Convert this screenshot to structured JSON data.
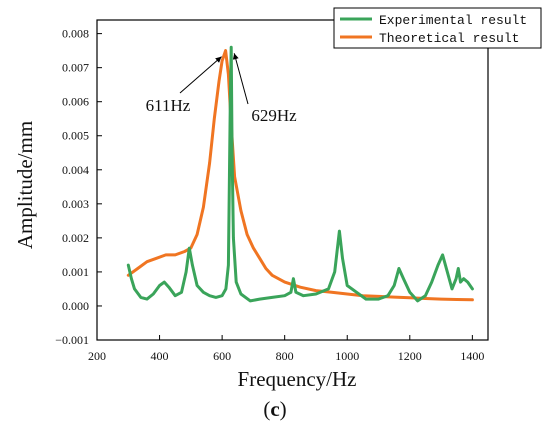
{
  "chart_data": {
    "type": "line",
    "xlabel": "Frequency/Hz",
    "ylabel": "Amplitude/mm",
    "xlim": [
      200,
      1450
    ],
    "ylim": [
      -0.001,
      0.0084
    ],
    "xticks": [
      200,
      400,
      600,
      800,
      1000,
      1200,
      1400
    ],
    "xtick_labels": [
      "200",
      "400",
      "600",
      "800",
      "1000",
      "1200",
      "1400"
    ],
    "yticks": [
      -0.001,
      0,
      0.001,
      0.002,
      0.003,
      0.004,
      0.005,
      0.006,
      0.007,
      0.008
    ],
    "ytick_labels": [
      "−0.001",
      "0.000",
      "0.001",
      "0.002",
      "0.003",
      "0.004",
      "0.005",
      "0.006",
      "0.007",
      "0.008"
    ],
    "grid": false,
    "legend_position": "top-right",
    "caption": "(c)",
    "caption_bold_letter": "c",
    "caption_open": "(",
    "caption_close": ")",
    "series": [
      {
        "name": "Experimental result",
        "color": "#3aa45a",
        "points": [
          [
            300,
            0.0012
          ],
          [
            310,
            0.0008
          ],
          [
            320,
            0.0005
          ],
          [
            340,
            0.00025
          ],
          [
            360,
            0.0002
          ],
          [
            380,
            0.00035
          ],
          [
            400,
            0.0006
          ],
          [
            415,
            0.0007
          ],
          [
            430,
            0.00055
          ],
          [
            450,
            0.0003
          ],
          [
            470,
            0.0004
          ],
          [
            485,
            0.001
          ],
          [
            495,
            0.0017
          ],
          [
            505,
            0.0012
          ],
          [
            520,
            0.0006
          ],
          [
            540,
            0.0004
          ],
          [
            560,
            0.0003
          ],
          [
            580,
            0.00025
          ],
          [
            600,
            0.0003
          ],
          [
            612,
            0.0005
          ],
          [
            620,
            0.0012
          ],
          [
            626,
            0.006
          ],
          [
            629,
            0.0076
          ],
          [
            632,
            0.0045
          ],
          [
            636,
            0.002
          ],
          [
            645,
            0.0007
          ],
          [
            660,
            0.00035
          ],
          [
            690,
            0.00015
          ],
          [
            720,
            0.0002
          ],
          [
            760,
            0.00025
          ],
          [
            800,
            0.0003
          ],
          [
            820,
            0.0004
          ],
          [
            828,
            0.0008
          ],
          [
            836,
            0.0004
          ],
          [
            860,
            0.0003
          ],
          [
            900,
            0.00035
          ],
          [
            940,
            0.0005
          ],
          [
            960,
            0.001
          ],
          [
            975,
            0.0022
          ],
          [
            985,
            0.0014
          ],
          [
            1000,
            0.0006
          ],
          [
            1030,
            0.0004
          ],
          [
            1060,
            0.0002
          ],
          [
            1100,
            0.0002
          ],
          [
            1130,
            0.0003
          ],
          [
            1150,
            0.0006
          ],
          [
            1165,
            0.0011
          ],
          [
            1180,
            0.0008
          ],
          [
            1200,
            0.0004
          ],
          [
            1225,
            0.00015
          ],
          [
            1250,
            0.0003
          ],
          [
            1270,
            0.0007
          ],
          [
            1290,
            0.0012
          ],
          [
            1305,
            0.0015
          ],
          [
            1320,
            0.001
          ],
          [
            1335,
            0.0005
          ],
          [
            1348,
            0.0008
          ],
          [
            1355,
            0.0011
          ],
          [
            1362,
            0.0007
          ],
          [
            1372,
            0.0008
          ],
          [
            1385,
            0.0007
          ],
          [
            1400,
            0.0005
          ]
        ]
      },
      {
        "name": "Theoretical result",
        "color": "#f07522",
        "points": [
          [
            300,
            0.0009
          ],
          [
            330,
            0.0011
          ],
          [
            360,
            0.0013
          ],
          [
            390,
            0.0014
          ],
          [
            420,
            0.0015
          ],
          [
            450,
            0.0015
          ],
          [
            480,
            0.0016
          ],
          [
            500,
            0.0017
          ],
          [
            520,
            0.0021
          ],
          [
            540,
            0.0029
          ],
          [
            560,
            0.0042
          ],
          [
            575,
            0.0055
          ],
          [
            590,
            0.0066
          ],
          [
            600,
            0.0072
          ],
          [
            611,
            0.0075
          ],
          [
            620,
            0.0068
          ],
          [
            630,
            0.0052
          ],
          [
            640,
            0.0038
          ],
          [
            660,
            0.0028
          ],
          [
            680,
            0.0021
          ],
          [
            700,
            0.0017
          ],
          [
            720,
            0.0014
          ],
          [
            740,
            0.0011
          ],
          [
            760,
            0.0009
          ],
          [
            800,
            0.0007
          ],
          [
            850,
            0.00055
          ],
          [
            900,
            0.00045
          ],
          [
            950,
            0.0004
          ],
          [
            1000,
            0.00035
          ],
          [
            1050,
            0.0003
          ],
          [
            1100,
            0.00028
          ],
          [
            1150,
            0.00026
          ],
          [
            1200,
            0.00024
          ],
          [
            1250,
            0.00022
          ],
          [
            1300,
            0.0002
          ],
          [
            1350,
            0.00019
          ],
          [
            1400,
            0.00018
          ]
        ]
      }
    ],
    "annotations": [
      {
        "text": "611Hz",
        "target": [
          611,
          0.0075
        ]
      },
      {
        "text": "629Hz",
        "target": [
          629,
          0.0076
        ]
      }
    ]
  }
}
